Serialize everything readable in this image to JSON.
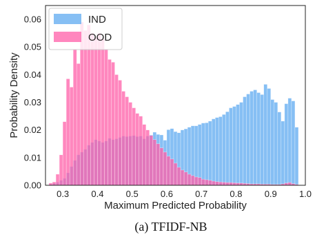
{
  "caption": "(a) TFIDF-NB",
  "chart_data": {
    "type": "histogram",
    "xlabel": "Maximum Predicted Probability",
    "ylabel": "Probability Density",
    "xlim": [
      0.25,
      1.0
    ],
    "ylim": [
      0.0,
      0.065
    ],
    "xticks": [
      "0.3",
      "0.4",
      "0.5",
      "0.6",
      "0.7",
      "0.8",
      "0.9",
      "1.0"
    ],
    "yticks": [
      "0.00",
      "0.01",
      "0.02",
      "0.03",
      "0.04",
      "0.05",
      "0.06"
    ],
    "bin_start": 0.26,
    "bin_width": 0.01,
    "grid": false,
    "legend_position": "top-left",
    "series": [
      {
        "name": "IND",
        "color": "#5ea9f0",
        "values": [
          0.0003,
          0.0007,
          0.0011,
          0.0018,
          0.0025,
          0.0045,
          0.0068,
          0.009,
          0.011,
          0.012,
          0.013,
          0.0145,
          0.0155,
          0.0165,
          0.016,
          0.0155,
          0.016,
          0.017,
          0.0165,
          0.0168,
          0.0173,
          0.0178,
          0.0176,
          0.0178,
          0.018,
          0.0176,
          0.0178,
          0.0168,
          0.0178,
          0.0182,
          0.0192,
          0.0184,
          0.0182,
          0.0163,
          0.0201,
          0.0205,
          0.0194,
          0.019,
          0.02,
          0.0204,
          0.021,
          0.0215,
          0.0215,
          0.022,
          0.0225,
          0.0226,
          0.0232,
          0.024,
          0.0245,
          0.0248,
          0.0256,
          0.0266,
          0.028,
          0.0285,
          0.0292,
          0.03,
          0.032,
          0.033,
          0.034,
          0.0345,
          0.0335,
          0.0328,
          0.0365,
          0.035,
          0.031,
          0.03,
          0.0265,
          0.0232,
          0.0295,
          0.0315,
          0.0305,
          0.021
        ]
      },
      {
        "name": "OOD",
        "color": "#ff5fa8",
        "values": [
          0.0008,
          0.0012,
          0.004,
          0.011,
          0.023,
          0.0385,
          0.0355,
          0.049,
          0.044,
          0.059,
          0.056,
          0.058,
          0.055,
          0.0535,
          0.055,
          0.053,
          0.049,
          0.0455,
          0.0445,
          0.04,
          0.038,
          0.034,
          0.032,
          0.03,
          0.028,
          0.026,
          0.025,
          0.022,
          0.02,
          0.018,
          0.0165,
          0.015,
          0.0135,
          0.012,
          0.0105,
          0.0095,
          0.008,
          0.0065,
          0.0055,
          0.0048,
          0.004,
          0.0035,
          0.003,
          0.0028,
          0.0022,
          0.002,
          0.0018,
          0.0015,
          0.0013,
          0.0012,
          0.0011,
          0.001,
          0.001,
          0.0009,
          0.0008,
          0.0008,
          0.0007,
          0.0006,
          0.0005,
          0.0005,
          0.0005,
          0.0004,
          0.0004,
          0.0004,
          0.0003,
          0.0003,
          0.0003,
          0.0005,
          0.0008,
          0.001,
          0.0006,
          0.0003
        ]
      }
    ]
  }
}
